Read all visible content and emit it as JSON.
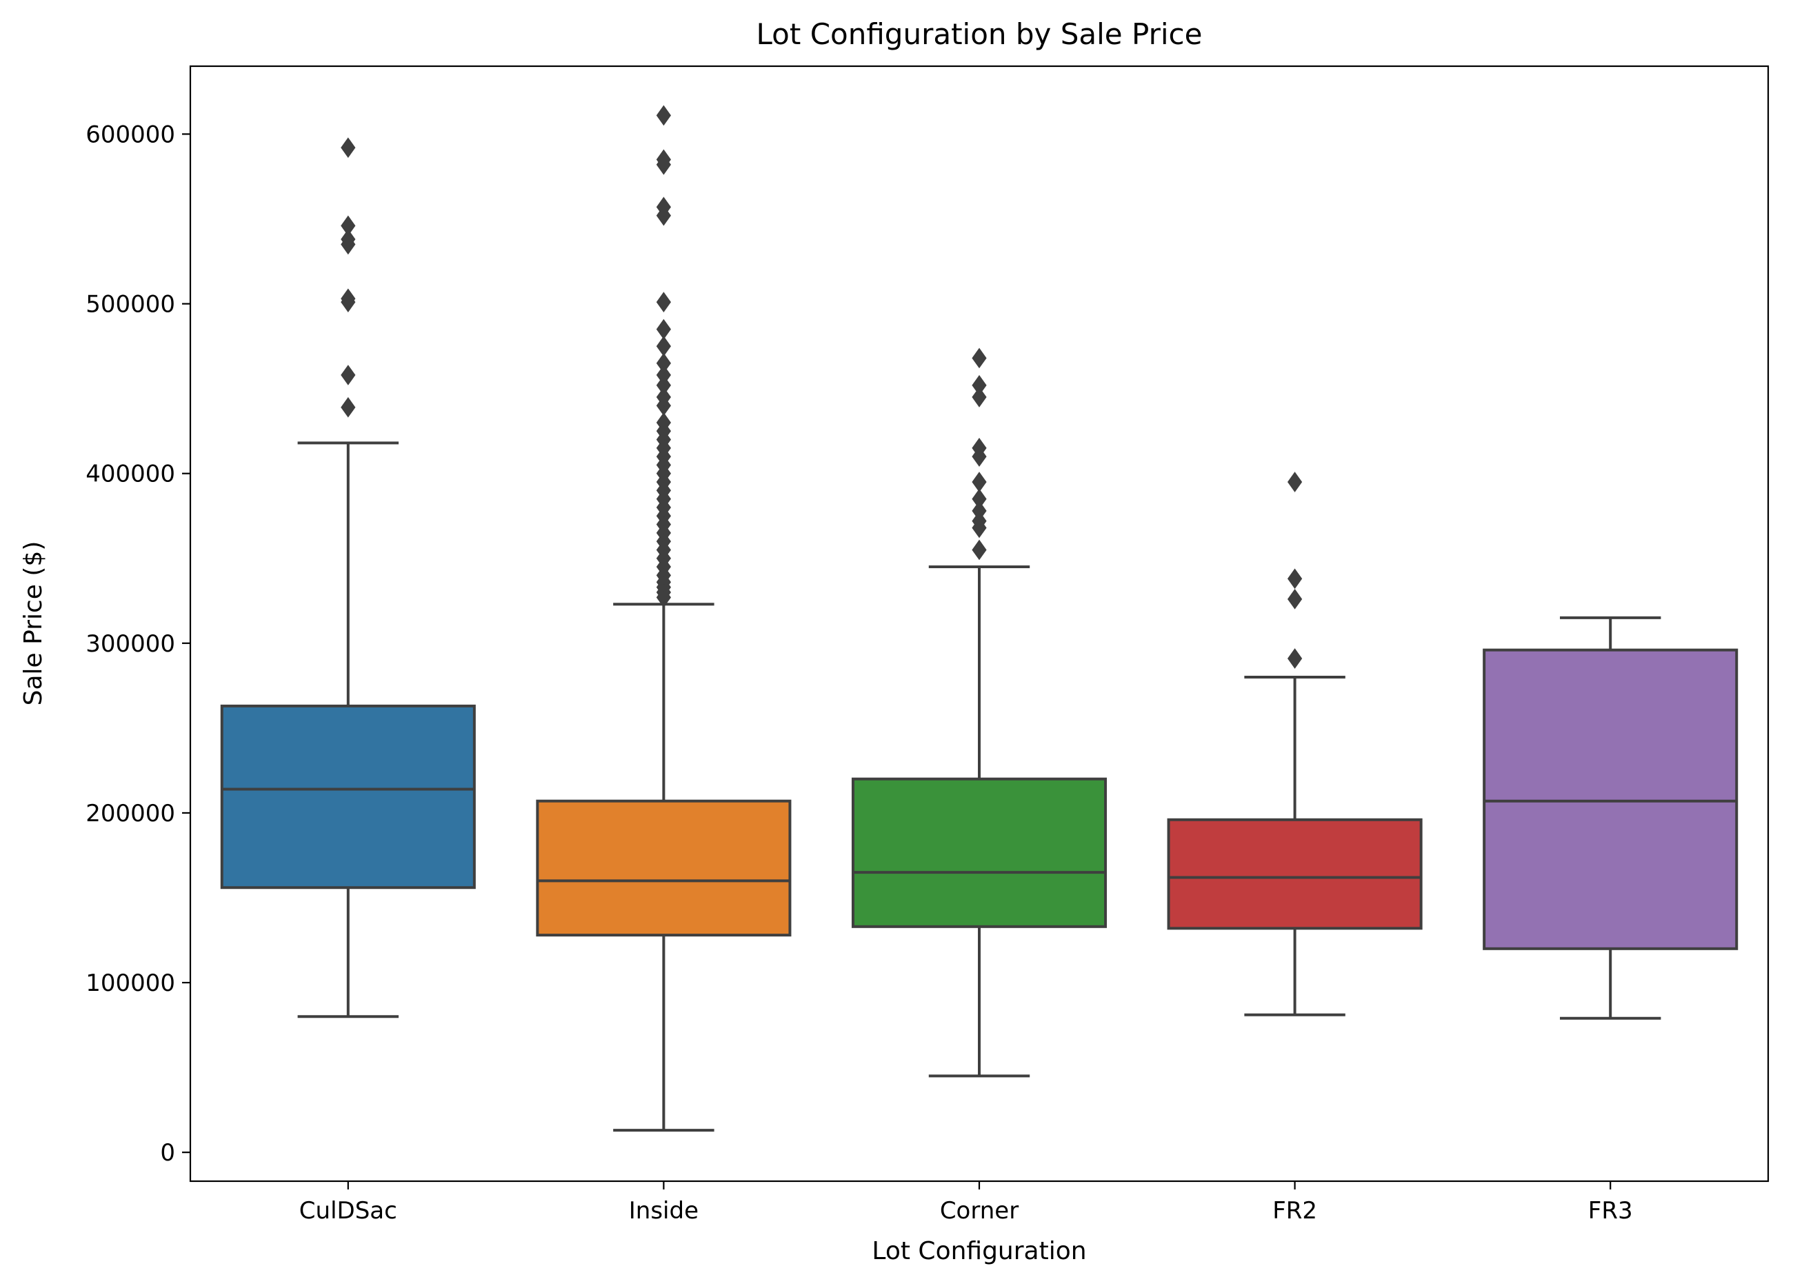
{
  "chart_data": {
    "type": "box",
    "title": "Lot Configuration by Sale Price",
    "xlabel": "Lot Configuration",
    "ylabel": "Sale Price ($)",
    "ylim": [
      -17000,
      640000
    ],
    "yticks": [
      0,
      100000,
      200000,
      300000,
      400000,
      500000,
      600000
    ],
    "ytick_labels": [
      "0",
      "100000",
      "200000",
      "300000",
      "400000",
      "500000",
      "600000"
    ],
    "grid": false,
    "legend": "none",
    "categories": [
      "CulDSac",
      "Inside",
      "Corner",
      "FR2",
      "FR3"
    ],
    "series": [
      {
        "category": "CulDSac",
        "color": "#3274a1",
        "whisker_low": 80000,
        "q1": 156000,
        "median": 214000,
        "q3": 263000,
        "whisker_high": 418000,
        "outliers": [
          439000,
          458000,
          501000,
          503000,
          535000,
          538000,
          546000,
          592000
        ]
      },
      {
        "category": "Inside",
        "color": "#e1812c",
        "whisker_low": 13000,
        "q1": 128000,
        "median": 160000,
        "q3": 207000,
        "whisker_high": 323000,
        "outliers": [
          327000,
          330000,
          333000,
          336000,
          340000,
          345000,
          350000,
          355000,
          360000,
          365000,
          370000,
          375000,
          380000,
          385000,
          390000,
          395000,
          400000,
          405000,
          410000,
          415000,
          420000,
          425000,
          430000,
          440000,
          445000,
          452000,
          458000,
          465000,
          475000,
          485000,
          501000,
          552000,
          557000,
          582000,
          585000,
          611000
        ]
      },
      {
        "category": "Corner",
        "color": "#3a923a",
        "whisker_low": 45000,
        "q1": 133000,
        "median": 165000,
        "q3": 220000,
        "whisker_high": 345000,
        "outliers": [
          355000,
          368000,
          372000,
          378000,
          385000,
          395000,
          410000,
          415000,
          445000,
          452000,
          468000
        ]
      },
      {
        "category": "FR2",
        "color": "#c03d3e",
        "whisker_low": 81000,
        "q1": 132000,
        "median": 162000,
        "q3": 196000,
        "whisker_high": 280000,
        "outliers": [
          291000,
          326000,
          338000,
          395000
        ]
      },
      {
        "category": "FR3",
        "color": "#9372b2",
        "whisker_low": 79000,
        "q1": 120000,
        "median": 207000,
        "q3": 296000,
        "whisker_high": 315000,
        "outliers": []
      }
    ]
  }
}
